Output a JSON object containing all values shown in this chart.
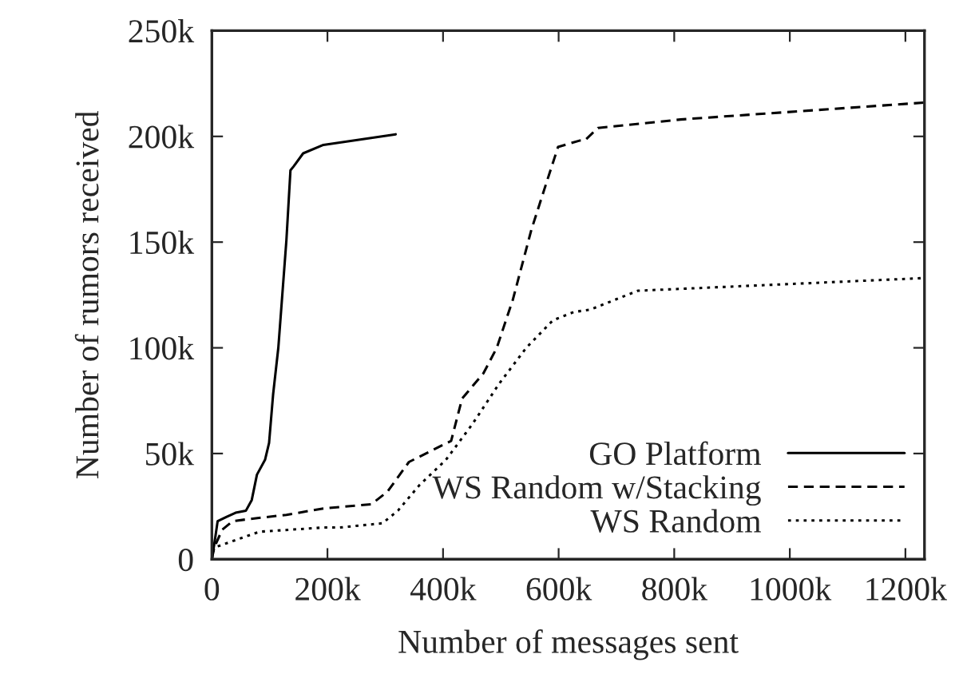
{
  "chart_data": {
    "type": "line",
    "xlabel": "Number of messages sent",
    "ylabel": "Number of rumors received",
    "xlim": [
      0,
      1233000
    ],
    "ylim": [
      0,
      250000
    ],
    "xticks": [
      0,
      {
        "value": 200000,
        "label": "200k"
      },
      {
        "value": 400000,
        "label": "400k"
      },
      {
        "value": 600000,
        "label": "600k"
      },
      {
        "value": 800000,
        "label": "800k"
      },
      {
        "value": 1000000,
        "label": "1000k"
      },
      {
        "value": 1200000,
        "label": "1200k"
      }
    ],
    "yticks": [
      0,
      {
        "value": 50000,
        "label": "50k"
      },
      {
        "value": 100000,
        "label": "100k"
      },
      {
        "value": 150000,
        "label": "150k"
      },
      {
        "value": 200000,
        "label": "200k"
      },
      {
        "value": 250000,
        "label": "250k"
      }
    ],
    "grid": false,
    "legend": "bottom right",
    "series": [
      {
        "name": "GO Platform",
        "color": "#000000",
        "line_style": "solid",
        "x": [
          0,
          4000,
          10000,
          25000,
          41000,
          59000,
          69000,
          78000,
          92000,
          99000,
          106000,
          115000,
          129000,
          136000,
          142000,
          158000,
          193000,
          318000
        ],
        "values": [
          0,
          6800,
          18000,
          20000,
          22000,
          23000,
          28000,
          40000,
          47000,
          55000,
          78000,
          100000,
          151000,
          184000,
          186000,
          192000,
          196000,
          201000
        ]
      },
      {
        "name": "WS Random w/Stacking",
        "color": "#000000",
        "line_style": "dashed",
        "x": [
          0,
          4000,
          18000,
          36000,
          64000,
          129000,
          193000,
          276000,
          304000,
          341000,
          414000,
          433000,
          470000,
          493000,
          521000,
          553000,
          580000,
          599000,
          636000,
          645000,
          668000,
          811000,
          1233000
        ],
        "values": [
          0,
          5500,
          14000,
          18000,
          19000,
          21000,
          24000,
          26000,
          32000,
          46000,
          56000,
          76000,
          88000,
          100000,
          123000,
          156000,
          179000,
          195000,
          198000,
          198000,
          204000,
          208000,
          216000
        ]
      },
      {
        "name": "WS Random",
        "color": "#000000",
        "line_style": "dotted",
        "x": [
          0,
          4000,
          82000,
          193000,
          221000,
          295000,
          322000,
          359000,
          405000,
          451000,
          497000,
          544000,
          590000,
          627000,
          654000,
          737000,
          1233000
        ],
        "values": [
          0,
          5500,
          13000,
          15000,
          15000,
          17000,
          23000,
          35000,
          47000,
          64000,
          83000,
          100000,
          113000,
          117000,
          118000,
          127000,
          133000
        ]
      }
    ]
  }
}
